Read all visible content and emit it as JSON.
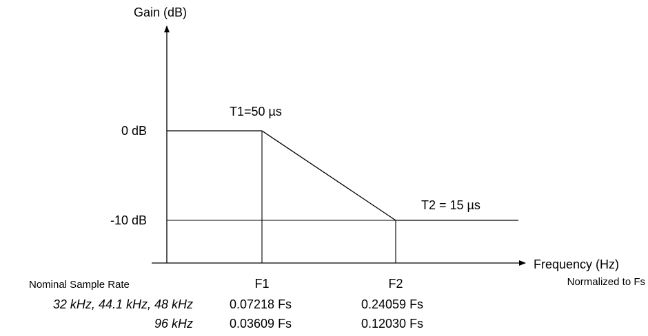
{
  "chart_data": {
    "type": "line",
    "ylabel": "Gain  (dB)",
    "xlabel": "Frequency  (Hz)",
    "xlabel_sub": "Normalized to Fs",
    "y_ticks": [
      "0 dB",
      "-10 dB"
    ],
    "x_ticks": [
      "F1",
      "F2"
    ],
    "series": [
      {
        "points": [
          {
            "x": "0",
            "y": 0
          },
          {
            "x": "F1",
            "y": 0
          },
          {
            "x": "F2",
            "y": -10
          },
          {
            "x": "beyond F2",
            "y": -10
          }
        ]
      }
    ],
    "annotations": {
      "t1": "T1=50 µs",
      "t2": "T2 = 15 µs"
    }
  },
  "table": {
    "header": "Nominal Sample Rate",
    "rows": [
      {
        "rate": "32 kHz, 44.1 kHz, 48 kHz",
        "f1": "0.07218 Fs",
        "f2": "0.24059 Fs"
      },
      {
        "rate": "96 kHz",
        "f1": "0.03609 Fs",
        "f2": "0.12030 Fs"
      }
    ]
  }
}
